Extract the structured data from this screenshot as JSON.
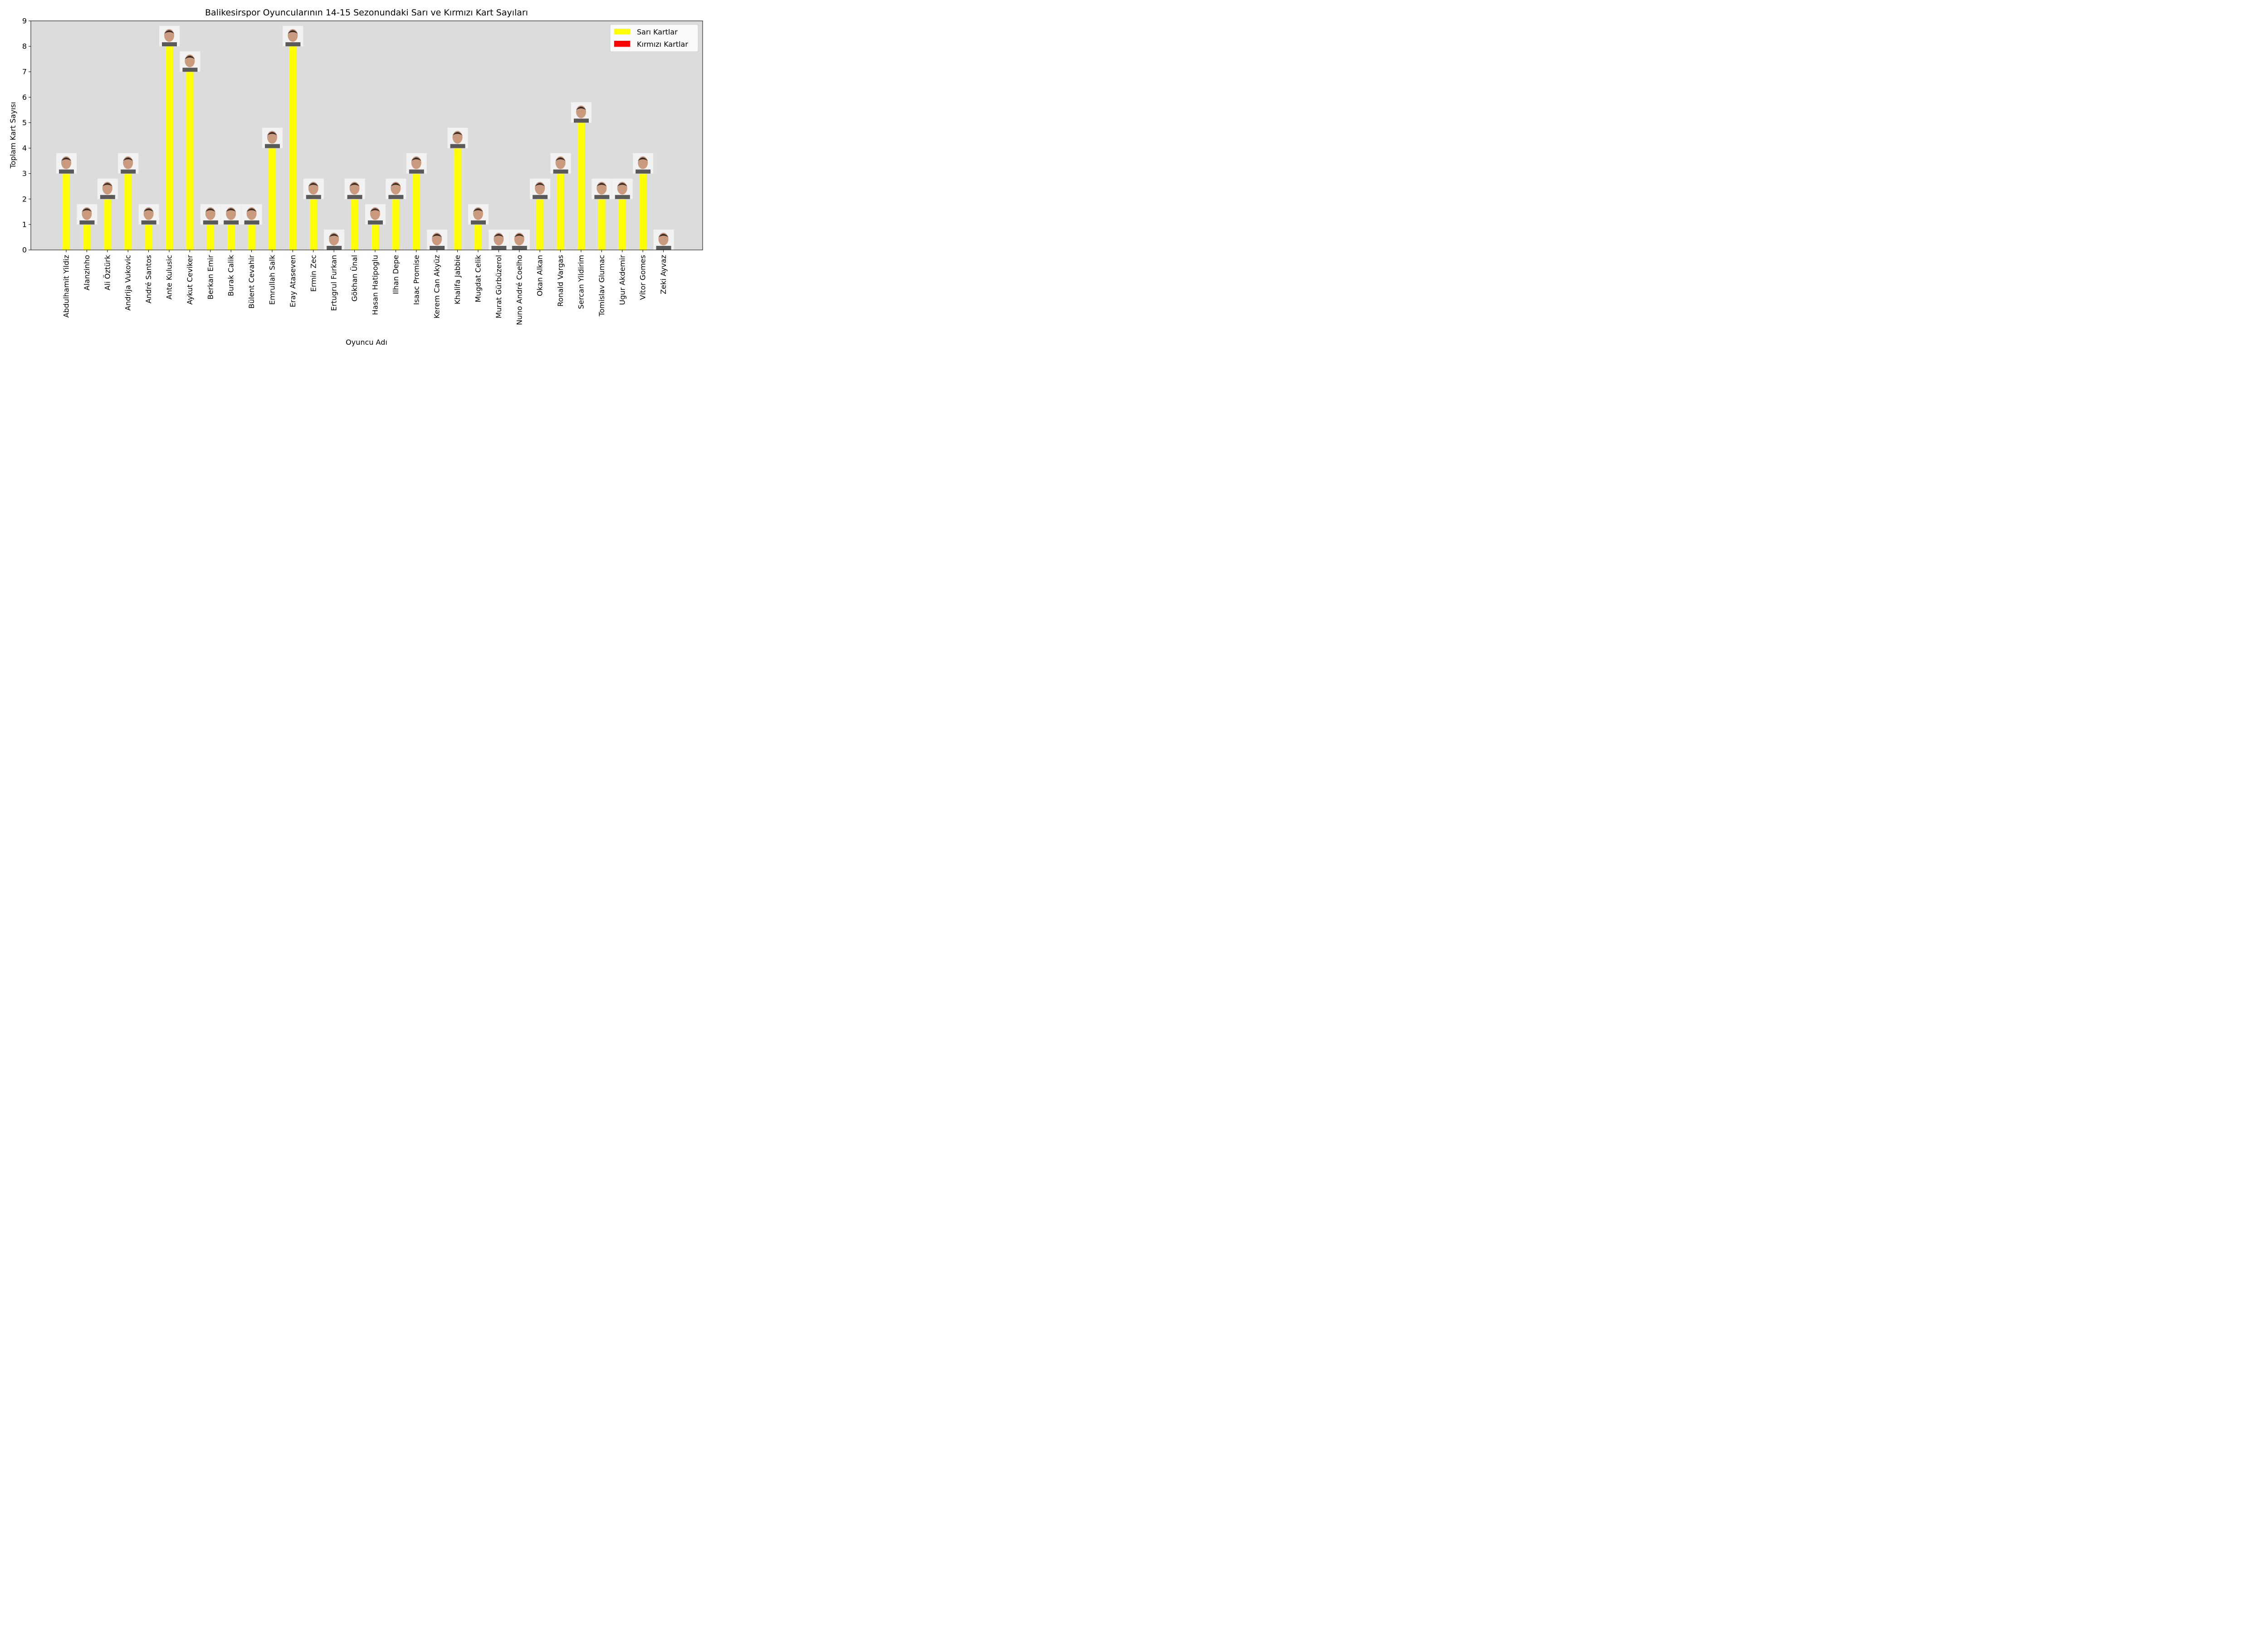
{
  "chart_data": {
    "type": "bar",
    "title": "Balikesirspor Oyuncularının 14-15 Sezonundaki Sarı ve Kırmızı Kart Sayıları",
    "xlabel": "Oyuncu Adı",
    "ylabel": "Toplam Kart Sayısı",
    "ylim": [
      0,
      9
    ],
    "yticks": [
      0,
      1,
      2,
      3,
      4,
      5,
      6,
      7,
      8,
      9
    ],
    "grid": false,
    "legend_position": "top-right",
    "background_color": "#dcdcdc",
    "categories": [
      "Abdulhamit Yildiz",
      "Alanzinho",
      "Ali Öztürk",
      "Andrija Vukovic",
      "André Santos",
      "Ante Kulusic",
      "Aykut Ceviker",
      "Berkan Emir",
      "Burak Calik",
      "Bülent Cevahir",
      "Emrullah Salk",
      "Eray Ataseven",
      "Ermin Zec",
      "Ertugrul Furkan",
      "Gökhan Ünal",
      "Hasan Hatipoglu",
      "Ilhan Depe",
      "Isaac Promise",
      "Kerem Can Akyüz",
      "Khalifa Jabbie",
      "Mugdat Celik",
      "Murat Gürbüzerol",
      "Nuno André Coelho",
      "Okan Alkan",
      "Ronald Vargas",
      "Sercan Yildirim",
      "Tomislav Glumac",
      "Ugur Akdemir",
      "Vítor Gomes",
      "Zeki Ayvaz"
    ],
    "series": [
      {
        "name": "Sarı Kartlar",
        "color": "#ffff00",
        "values": [
          3,
          1,
          2,
          3,
          1,
          8,
          7,
          1,
          1,
          1,
          4,
          8,
          2,
          0,
          2,
          1,
          2,
          3,
          0,
          4,
          1,
          0,
          0,
          2,
          3,
          5,
          2,
          2,
          3,
          0
        ]
      },
      {
        "name": "Kırmızı Kartlar",
        "color": "#ff0000",
        "values": [
          0,
          0,
          0,
          0,
          0,
          0,
          0,
          0,
          0,
          0,
          0,
          0,
          0,
          0,
          0,
          0,
          0,
          0,
          0,
          0,
          0,
          0,
          0,
          0,
          0,
          0,
          0,
          0,
          0,
          0
        ]
      }
    ],
    "photo_icon": "player-photo-icon"
  }
}
